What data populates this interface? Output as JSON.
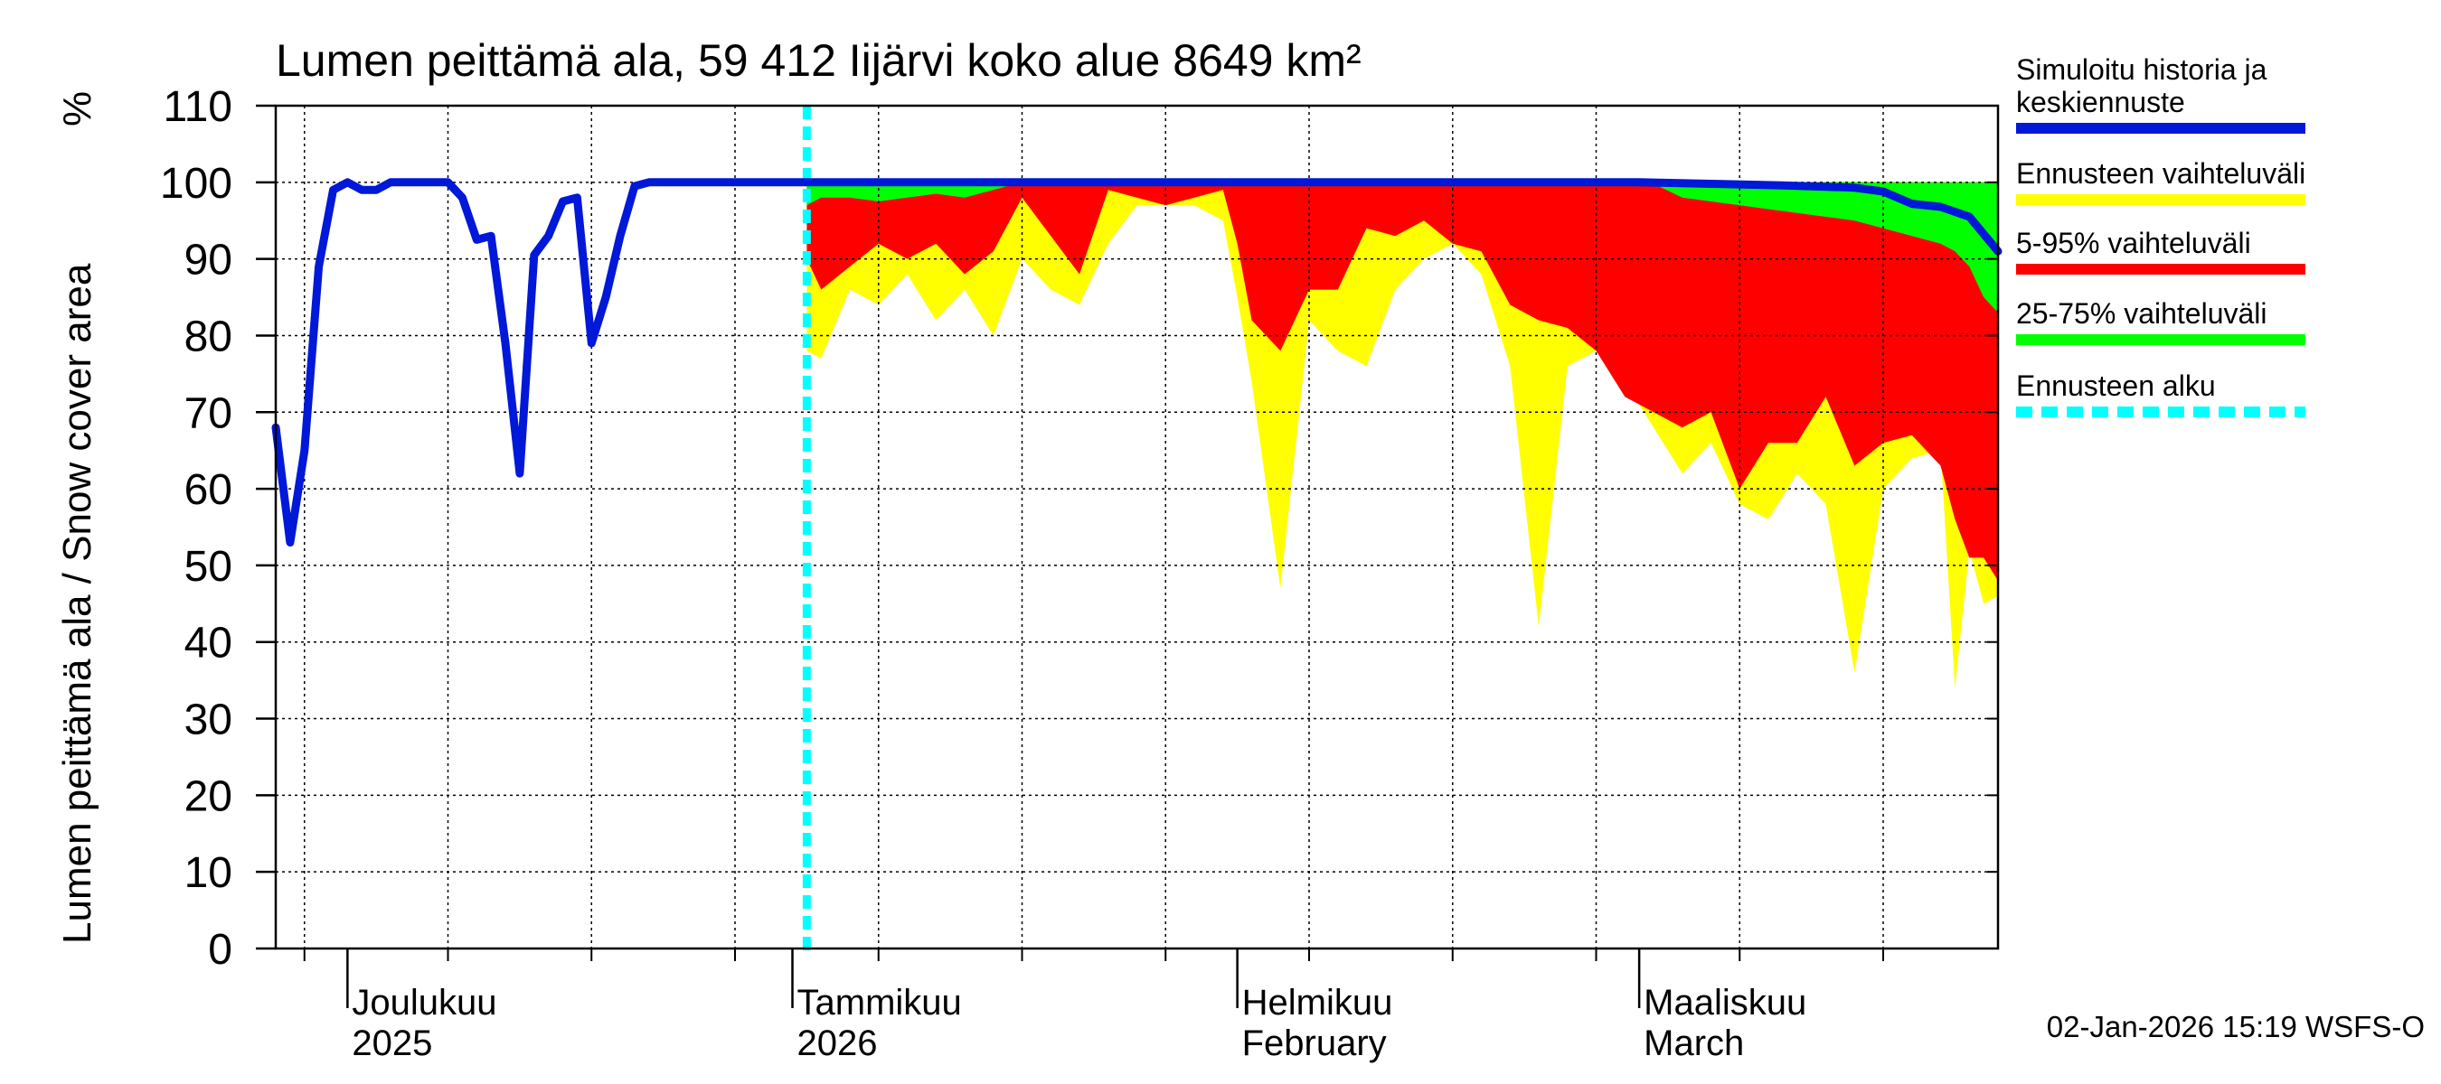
{
  "chart_data": {
    "type": "area",
    "title": "Lumen peittämä ala, 59 412 Iijärvi koko alue 8649 km²",
    "ylabel": "Lumen peittämä ala / Snow cover area",
    "yunit": "%",
    "ylim": [
      0,
      110
    ],
    "yticks": [
      0,
      10,
      20,
      30,
      40,
      50,
      60,
      70,
      80,
      90,
      100,
      110
    ],
    "xlim": [
      0,
      120
    ],
    "x_unit": "days since 2025-11-26",
    "month_labels": [
      {
        "x": 5,
        "line1": "Joulukuu",
        "line2": "2025"
      },
      {
        "x": 36,
        "line1": "Tammikuu",
        "line2": "2026"
      },
      {
        "x": 67,
        "line1": "Helmikuu",
        "line2": "February"
      },
      {
        "x": 95,
        "line1": "Maaliskuu",
        "line2": "March"
      }
    ],
    "month_boundaries": [
      5,
      36,
      67,
      95
    ],
    "week_ticks": [
      2,
      12,
      22,
      32,
      42,
      52,
      62,
      72,
      82,
      92,
      102,
      112
    ],
    "forecast_start_x": 37,
    "legend": [
      {
        "label_lines": [
          "Simuloitu historia ja",
          "keskiennuste"
        ],
        "color": "#0018d8",
        "style": "solid"
      },
      {
        "label_lines": [
          "Ennusteen vaihteluväli"
        ],
        "color": "#ffff00",
        "style": "solid"
      },
      {
        "label_lines": [
          "5-95% vaihteluväli"
        ],
        "color": "#ff0000",
        "style": "solid"
      },
      {
        "label_lines": [
          "25-75% vaihteluväli"
        ],
        "color": "#00ff00",
        "style": "solid"
      },
      {
        "label_lines": [
          "Ennusteen alku"
        ],
        "color": "#00ffff",
        "style": "dashed"
      }
    ],
    "series": [
      {
        "name": "Simuloitu historia ja keskiennuste",
        "x": [
          0,
          1,
          2,
          3,
          4,
          5,
          6,
          7,
          8,
          9,
          10,
          11,
          12,
          13,
          14,
          15,
          16,
          17,
          18,
          19,
          20,
          21,
          22,
          23,
          24,
          25,
          26,
          27,
          28,
          29,
          30,
          31,
          32,
          33,
          34,
          35,
          36,
          37,
          60,
          80,
          95,
          100,
          105,
          110,
          112,
          114,
          116,
          118,
          120
        ],
        "values": [
          68,
          53,
          65,
          89,
          99,
          100,
          99,
          99,
          100,
          100,
          100,
          100,
          100,
          98,
          92.5,
          93,
          79,
          62,
          90.5,
          93,
          97.5,
          98,
          79,
          85,
          93,
          99.5,
          100,
          100,
          100,
          100,
          100,
          100,
          100,
          100,
          100,
          100,
          100,
          100,
          100,
          100,
          100,
          99.8,
          99.6,
          99.3,
          98.8,
          97.2,
          96.8,
          95.5,
          91
        ]
      },
      {
        "name": "Ennusteen vaihteluväli",
        "x": [
          37,
          38,
          40,
          42,
          44,
          46,
          48,
          50,
          52,
          54,
          56,
          58,
          60,
          62,
          64,
          66,
          67,
          68,
          70,
          72,
          74,
          76,
          78,
          80,
          82,
          84,
          86,
          88,
          90,
          92,
          94,
          96,
          98,
          100,
          102,
          104,
          106,
          108,
          110,
          112,
          114,
          116,
          117,
          118,
          119,
          120
        ],
        "upper": [
          100,
          100,
          100,
          100,
          100,
          100,
          100,
          100,
          100,
          100,
          100,
          100,
          100,
          100,
          100,
          100,
          100,
          100,
          100,
          100,
          100,
          100,
          100,
          100,
          100,
          100,
          100,
          100,
          100,
          100,
          100,
          100,
          100,
          100,
          100,
          100,
          100,
          100,
          100,
          100,
          100,
          100,
          100,
          100,
          100,
          100
        ],
        "lower": [
          78,
          77,
          86,
          84,
          88,
          82,
          86,
          80,
          90,
          86,
          84,
          92,
          97,
          97,
          97,
          95,
          85,
          74,
          47,
          82,
          78,
          76,
          86,
          90,
          92,
          88,
          76,
          42,
          76,
          78,
          74,
          68,
          62,
          66,
          58,
          56,
          62,
          58,
          36,
          60,
          64,
          65,
          34,
          52,
          45,
          46
        ]
      },
      {
        "name": "5-95% vaihteluväli",
        "x": [
          37,
          38,
          40,
          42,
          44,
          46,
          48,
          50,
          52,
          54,
          56,
          58,
          60,
          62,
          64,
          66,
          67,
          68,
          70,
          72,
          74,
          76,
          78,
          80,
          82,
          84,
          86,
          88,
          90,
          92,
          94,
          96,
          98,
          100,
          102,
          104,
          106,
          108,
          110,
          112,
          114,
          116,
          117,
          118,
          119,
          120
        ],
        "upper": [
          99.5,
          99.8,
          100,
          99.8,
          100,
          100,
          99.8,
          100,
          100,
          100,
          100,
          100,
          100,
          100,
          100,
          100,
          100,
          100,
          100,
          100,
          100,
          100,
          100,
          100,
          100,
          100,
          100,
          100,
          100,
          100,
          100,
          100,
          100,
          100,
          100,
          100,
          100,
          100,
          100,
          100,
          100,
          100,
          100,
          100,
          100,
          100
        ],
        "lower": [
          90,
          86,
          89,
          92,
          90,
          92,
          88,
          91,
          98,
          93,
          88,
          99,
          98,
          97,
          98,
          99,
          92,
          82,
          78,
          86,
          86,
          94,
          93,
          95,
          92,
          91,
          84,
          82,
          81,
          78,
          72,
          70,
          68,
          70,
          60,
          66,
          66,
          72,
          63,
          66,
          67,
          63,
          56,
          51,
          51,
          48
        ]
      },
      {
        "name": "25-75% vaihteluväli",
        "x": [
          37,
          38,
          40,
          42,
          44,
          46,
          48,
          50,
          52,
          54,
          56,
          58,
          60,
          62,
          64,
          66,
          67,
          68,
          70,
          72,
          74,
          76,
          78,
          80,
          82,
          84,
          86,
          88,
          90,
          92,
          94,
          96,
          98,
          100,
          102,
          104,
          106,
          108,
          110,
          112,
          114,
          116,
          117,
          118,
          119,
          120
        ],
        "upper": [
          100,
          100,
          100,
          100,
          100,
          100,
          100,
          100,
          100,
          100,
          100,
          100,
          100,
          100,
          100,
          100,
          100,
          100,
          100,
          100,
          100,
          100,
          100,
          100,
          100,
          100,
          100,
          100,
          100,
          100,
          100,
          100,
          100,
          100,
          100,
          100,
          100,
          100,
          100,
          100,
          100,
          100,
          100,
          100,
          100,
          100
        ],
        "lower": [
          97,
          98,
          98,
          97.5,
          98,
          98.5,
          98,
          99,
          100,
          100,
          99.5,
          100,
          99.5,
          99.8,
          100,
          100,
          100,
          100,
          100,
          100,
          99.8,
          100,
          100,
          100,
          100,
          100,
          100,
          100,
          100,
          100,
          100,
          99.8,
          98,
          97.5,
          97,
          96.5,
          96,
          95.5,
          95,
          94,
          93,
          92,
          91,
          89,
          85,
          83
        ]
      }
    ]
  },
  "timestamp": "02-Jan-2026 15:19 WSFS-O",
  "colors": {
    "median": "#0018d8",
    "ensemble": "#ffff00",
    "p5_95": "#ff0000",
    "p25_75": "#00ff00",
    "forecast_start": "#00ffff",
    "grid": "#000000"
  }
}
